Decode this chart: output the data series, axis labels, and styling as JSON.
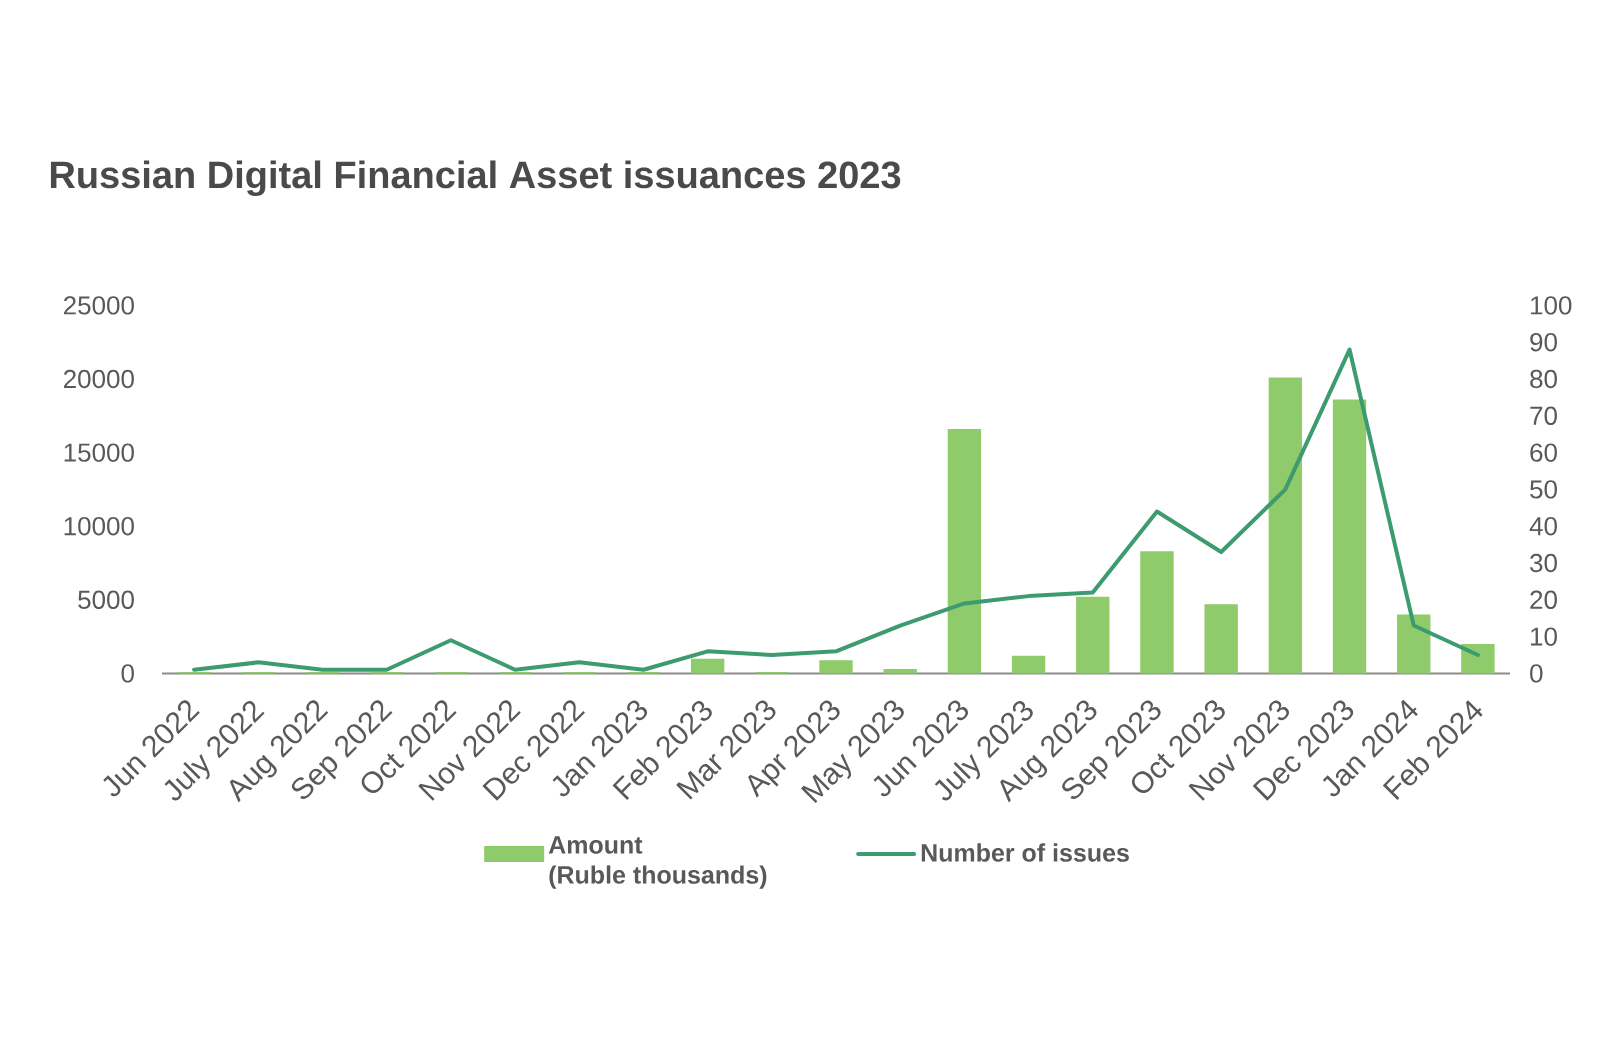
{
  "chart_data": {
    "type": "bar",
    "title": "Russian Digital Financial Asset issuances 2023",
    "categories": [
      "Jun 2022",
      "July 2022",
      "Aug 2022",
      "Sep 2022",
      "Oct 2022",
      "Nov 2022",
      "Dec 2022",
      "Jan 2023",
      "Feb 2023",
      "Mar 2023",
      "Apr 2023",
      "May 2023",
      "Jun 2023",
      "July 2023",
      "Aug 2023",
      "Sep 2023",
      "Oct 2023",
      "Nov 2023",
      "Dec 2023",
      "Jan 2024",
      "Feb 2024"
    ],
    "series": [
      {
        "name": "Amount (Ruble thousands)",
        "color": "#8fca6b",
        "values": [
          100,
          100,
          100,
          100,
          100,
          100,
          100,
          100,
          1000,
          100,
          900,
          300,
          16600,
          1200,
          5200,
          8300,
          4700,
          20100,
          18600,
          4000,
          2000
        ]
      },
      {
        "name": "Number of issues",
        "type": "line",
        "axis": "y2",
        "color": "#3d9b70",
        "values": [
          1,
          3,
          1,
          1,
          9,
          1,
          3,
          1,
          6,
          5,
          6,
          13,
          19,
          21,
          22,
          44,
          33,
          50,
          88,
          13,
          5
        ]
      }
    ],
    "ylim": [
      0,
      25000
    ],
    "yticks": [
      0,
      5000,
      10000,
      15000,
      20000,
      25000
    ],
    "y2lim": [
      0,
      100
    ],
    "y2ticks": [
      0,
      10,
      20,
      30,
      40,
      50,
      60,
      70,
      80,
      90,
      100
    ],
    "legend": "bottom",
    "marker": "none"
  }
}
